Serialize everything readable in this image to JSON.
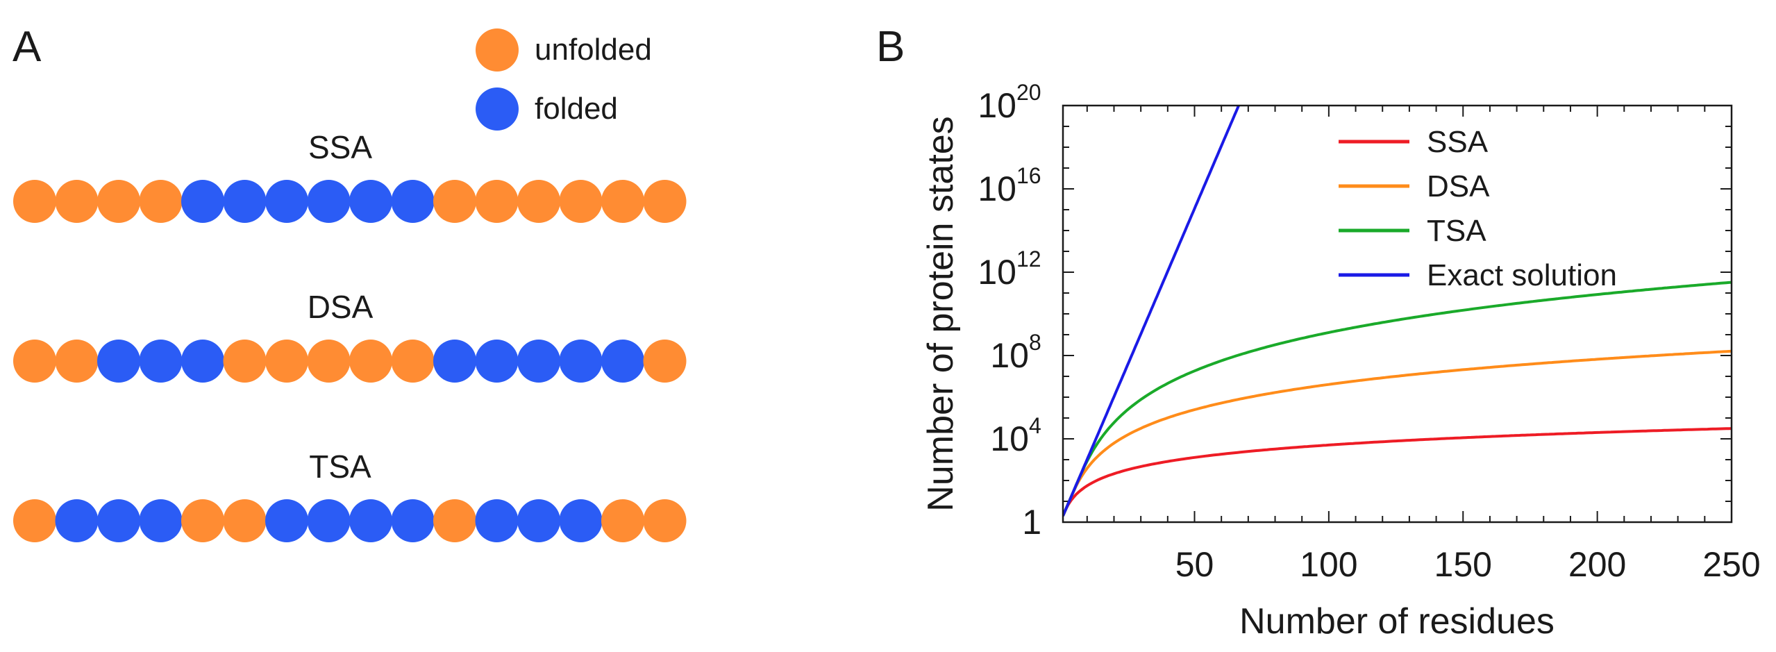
{
  "panel_a": {
    "label": "A",
    "legend": [
      {
        "label": "unfolded",
        "color": "#FF8C33"
      },
      {
        "label": "folded",
        "color": "#2B5CF5"
      }
    ],
    "chains": [
      {
        "name": "SSA",
        "states": "UUUUFFFFFFUUUUUU"
      },
      {
        "name": "DSA",
        "states": "UUFFFUUUUUFFFFFU"
      },
      {
        "name": "TSA",
        "states": "UFFFUUFFFFUFFFUU"
      }
    ],
    "colors": {
      "unfolded": "#FF8C33",
      "folded": "#2B5CF5"
    }
  },
  "panel_b": {
    "label": "B"
  },
  "chart_data": {
    "type": "line",
    "xlabel": "Number of residues",
    "ylabel": "Number of protein states",
    "xlim": [
      1,
      250
    ],
    "ylim_log10": [
      0,
      20
    ],
    "y_scale": "log",
    "x_ticks": [
      50,
      100,
      150,
      200,
      250
    ],
    "y_ticks": [
      {
        "value_log10": 0,
        "base": "1",
        "exp": ""
      },
      {
        "value_log10": 4,
        "base": "10",
        "exp": "4"
      },
      {
        "value_log10": 8,
        "base": "10",
        "exp": "8"
      },
      {
        "value_log10": 12,
        "base": "10",
        "exp": "12"
      },
      {
        "value_log10": 16,
        "base": "10",
        "exp": "16"
      },
      {
        "value_log10": 20,
        "base": "10",
        "exp": "20"
      }
    ],
    "legend_position": "top-right",
    "grid": false,
    "series": [
      {
        "name": "SSA",
        "color": "#EE1C25",
        "degree": 2,
        "x": [
          1,
          10,
          25,
          50,
          100,
          150,
          200,
          250
        ],
        "y": [
          1,
          55,
          325,
          1275,
          5050,
          11325,
          20100,
          31375
        ]
      },
      {
        "name": "DSA",
        "color": "#FF8C1A",
        "degree": 4,
        "x": [
          1,
          10,
          25,
          50,
          100,
          150,
          200,
          250
        ],
        "y": [
          1,
          1000,
          19000.0,
          320000.0,
          5500000.0,
          29000000.0,
          92000000.0,
          220000000.0
        ]
      },
      {
        "name": "TSA",
        "color": "#1AAA2A",
        "degree": 6,
        "x": [
          1,
          10,
          25,
          50,
          100,
          150,
          200,
          250
        ],
        "y": [
          1,
          8000,
          310000.0,
          22000000.0,
          1800000000.0,
          23000000000.0,
          130000000000.0,
          500000000000.0
        ]
      },
      {
        "name": "Exact solution",
        "color": "#1A1AE6",
        "x": [
          1,
          10,
          25,
          50,
          66
        ],
        "y": [
          2,
          1024,
          34000000.0,
          1100000000000000.0,
          7.4e+19
        ]
      }
    ]
  }
}
